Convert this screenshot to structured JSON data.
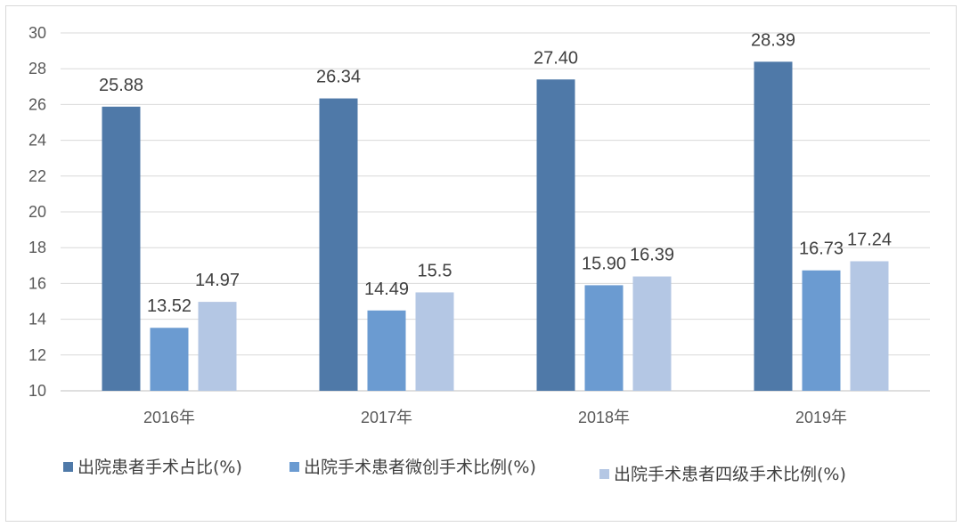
{
  "chart_data": {
    "type": "bar",
    "categories": [
      "2016年",
      "2017年",
      "2018年",
      "2019年"
    ],
    "series": [
      {
        "name": "出院患者手术占比(%)",
        "values": [
          25.88,
          26.34,
          27.4,
          28.39
        ],
        "labels": [
          "25.88",
          "26.34",
          "27.40",
          "28.39"
        ],
        "color": "#4f79a8"
      },
      {
        "name": "出院手术患者微创手术比例(%)",
        "values": [
          13.52,
          14.49,
          15.9,
          16.73
        ],
        "labels": [
          "13.52",
          "14.49",
          "15.90",
          "16.73"
        ],
        "color": "#6b9bd1"
      },
      {
        "name": "出院手术患者四级手术比例(%)",
        "values": [
          14.97,
          15.5,
          16.39,
          17.24
        ],
        "labels": [
          "14.97",
          "15.5",
          "16.39",
          "17.24"
        ],
        "color": "#b4c7e4"
      }
    ],
    "ylim": [
      10,
      30
    ],
    "yticks": [
      "10",
      "12",
      "14",
      "16",
      "18",
      "20",
      "22",
      "24",
      "26",
      "28",
      "30"
    ],
    "grid": true,
    "legend": "bottom"
  }
}
